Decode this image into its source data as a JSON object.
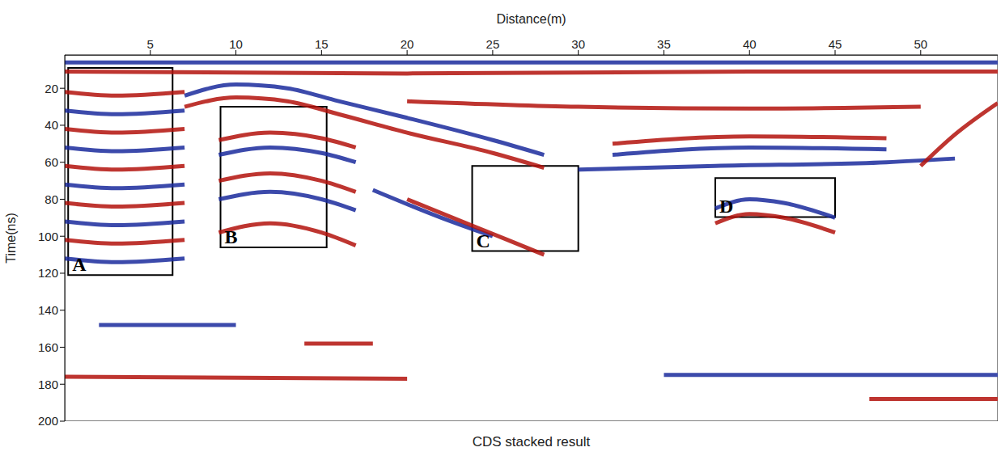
{
  "chart_data": {
    "type": "line",
    "title": "CDS stacked result",
    "x_label": "Distance(m)",
    "y_label": "Time(ns)",
    "xlim": [
      0,
      54.5
    ],
    "ylim": [
      2,
      200
    ],
    "xticks": [
      5,
      10,
      15,
      20,
      25,
      30,
      35,
      40,
      45,
      50
    ],
    "yticks": [
      20,
      40,
      60,
      80,
      100,
      120,
      140,
      160,
      180,
      200
    ],
    "grid": false,
    "boxes": [
      {
        "label": "A",
        "x": [
          0.2,
          6.3
        ],
        "y": [
          9,
          121
        ]
      },
      {
        "label": "B",
        "x": [
          9.1,
          15.3
        ],
        "y": [
          30,
          106
        ]
      },
      {
        "label": "C",
        "x": [
          23.8,
          30
        ],
        "y": [
          62,
          108
        ]
      },
      {
        "label": "D",
        "x": [
          38,
          45
        ],
        "y": [
          68.5,
          89.6
        ]
      }
    ],
    "series": [
      {
        "color": "#1a2a9c",
        "x": [
          0,
          10,
          20,
          30,
          40,
          54.5
        ],
        "values": [
          6,
          6,
          6,
          6,
          6,
          6
        ]
      },
      {
        "color": "#b3120c",
        "x": [
          0,
          20,
          40,
          54.5
        ],
        "values": [
          11,
          12,
          11,
          11
        ]
      },
      {
        "color": "#1a2a9c",
        "x": [
          7,
          10,
          13,
          16,
          20,
          25,
          28
        ],
        "values": [
          24,
          18,
          20,
          27,
          36,
          48,
          56
        ]
      },
      {
        "color": "#b3120c",
        "x": [
          7,
          10,
          13,
          16,
          20,
          25,
          28
        ],
        "values": [
          30,
          25,
          27,
          34,
          44,
          55,
          63
        ]
      },
      {
        "color": "#b3120c",
        "x": [
          20,
          30,
          40,
          50
        ],
        "values": [
          27,
          30,
          31,
          30
        ]
      },
      {
        "color": "#b3120c",
        "x": [
          0,
          3,
          7
        ],
        "values": [
          22,
          24,
          22
        ]
      },
      {
        "color": "#1a2a9c",
        "x": [
          0,
          3,
          7
        ],
        "values": [
          32,
          34,
          32
        ]
      },
      {
        "color": "#b3120c",
        "x": [
          0,
          3,
          7
        ],
        "values": [
          42,
          44,
          42
        ]
      },
      {
        "color": "#1a2a9c",
        "x": [
          0,
          3,
          7
        ],
        "values": [
          52,
          54,
          52
        ]
      },
      {
        "color": "#b3120c",
        "x": [
          0,
          3,
          7
        ],
        "values": [
          62,
          64,
          62
        ]
      },
      {
        "color": "#1a2a9c",
        "x": [
          0,
          3,
          7
        ],
        "values": [
          72,
          74,
          72
        ]
      },
      {
        "color": "#b3120c",
        "x": [
          0,
          3,
          7
        ],
        "values": [
          82,
          84,
          82
        ]
      },
      {
        "color": "#1a2a9c",
        "x": [
          0,
          3,
          7
        ],
        "values": [
          92,
          94,
          92
        ]
      },
      {
        "color": "#b3120c",
        "x": [
          0,
          3,
          7
        ],
        "values": [
          102,
          104,
          102
        ]
      },
      {
        "color": "#1a2a9c",
        "x": [
          0,
          3,
          7
        ],
        "values": [
          112,
          114,
          112
        ]
      },
      {
        "color": "#b3120c",
        "x": [
          9,
          12,
          15,
          17
        ],
        "values": [
          48,
          44,
          47,
          52
        ]
      },
      {
        "color": "#1a2a9c",
        "x": [
          9,
          12,
          15,
          17
        ],
        "values": [
          56,
          52,
          55,
          60
        ]
      },
      {
        "color": "#b3120c",
        "x": [
          9,
          12,
          15,
          17
        ],
        "values": [
          70,
          66,
          70,
          76
        ]
      },
      {
        "color": "#1a2a9c",
        "x": [
          9,
          12,
          15,
          17
        ],
        "values": [
          80,
          76,
          80,
          86
        ]
      },
      {
        "color": "#b3120c",
        "x": [
          9,
          12,
          15,
          17
        ],
        "values": [
          98,
          93,
          98,
          105
        ]
      },
      {
        "color": "#b3120c",
        "x": [
          32,
          40,
          48
        ],
        "values": [
          50,
          46,
          47
        ]
      },
      {
        "color": "#1a2a9c",
        "x": [
          32,
          40,
          48
        ],
        "values": [
          56,
          52,
          53
        ]
      },
      {
        "color": "#1a2a9c",
        "x": [
          30,
          38,
          48,
          52
        ],
        "values": [
          64,
          62,
          60,
          58
        ]
      },
      {
        "color": "#1a2a9c",
        "x": [
          38,
          40,
          42,
          45
        ],
        "values": [
          85,
          80,
          82,
          90
        ]
      },
      {
        "color": "#b3120c",
        "x": [
          38,
          40,
          42,
          45
        ],
        "values": [
          93,
          88,
          90,
          98
        ]
      },
      {
        "color": "#1a2a9c",
        "x": [
          18,
          22,
          25
        ],
        "values": [
          75,
          90,
          100
        ]
      },
      {
        "color": "#b3120c",
        "x": [
          20,
          24,
          28
        ],
        "values": [
          80,
          95,
          110
        ]
      },
      {
        "color": "#1a2a9c",
        "x": [
          2,
          10
        ],
        "values": [
          148,
          148
        ]
      },
      {
        "color": "#b3120c",
        "x": [
          14,
          18
        ],
        "values": [
          158,
          158
        ]
      },
      {
        "color": "#b3120c",
        "x": [
          0,
          20
        ],
        "values": [
          176,
          177
        ]
      },
      {
        "color": "#1a2a9c",
        "x": [
          35,
          54.5
        ],
        "values": [
          175,
          175
        ]
      },
      {
        "color": "#b3120c",
        "x": [
          47,
          54.5
        ],
        "values": [
          188,
          188
        ]
      },
      {
        "color": "#b3120c",
        "x": [
          50,
          52,
          54.5
        ],
        "values": [
          62,
          45,
          28
        ]
      }
    ]
  }
}
